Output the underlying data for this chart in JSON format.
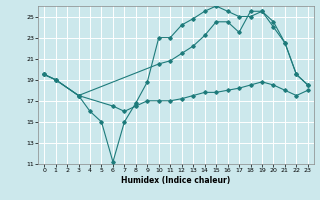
{
  "xlabel": "Humidex (Indice chaleur)",
  "bg_color": "#cce8ec",
  "grid_color": "#ffffff",
  "line_color": "#1e7b7b",
  "xlim": [
    -0.5,
    23.5
  ],
  "ylim": [
    11,
    26
  ],
  "xticks": [
    0,
    1,
    2,
    3,
    4,
    5,
    6,
    7,
    8,
    9,
    10,
    11,
    12,
    13,
    14,
    15,
    16,
    17,
    18,
    19,
    20,
    21,
    22,
    23
  ],
  "yticks": [
    11,
    13,
    15,
    17,
    19,
    21,
    23,
    25
  ],
  "series1_x": [
    0,
    1,
    3,
    4,
    5,
    6,
    7,
    8,
    9,
    10,
    11,
    12,
    13,
    14,
    15,
    16,
    17,
    18,
    19,
    20,
    21,
    22,
    23
  ],
  "series1_y": [
    19.5,
    19.0,
    17.5,
    16.0,
    15.0,
    11.2,
    15.0,
    16.8,
    18.8,
    23.0,
    23.0,
    24.2,
    24.8,
    25.5,
    26.0,
    25.5,
    25.0,
    25.0,
    25.5,
    24.5,
    22.5,
    19.5,
    18.5
  ],
  "series2_x": [
    0,
    1,
    3,
    10,
    11,
    12,
    13,
    14,
    15,
    16,
    17,
    18,
    19,
    20,
    21,
    22,
    23
  ],
  "series2_y": [
    19.5,
    19.0,
    17.5,
    20.5,
    20.8,
    21.5,
    22.2,
    23.2,
    24.5,
    24.5,
    23.5,
    25.5,
    25.5,
    24.0,
    22.5,
    19.5,
    18.5
  ],
  "series3_x": [
    0,
    1,
    3,
    6,
    7,
    8,
    9,
    10,
    11,
    12,
    13,
    14,
    15,
    16,
    17,
    18,
    19,
    20,
    21,
    22,
    23
  ],
  "series3_y": [
    19.5,
    19.0,
    17.5,
    16.5,
    16.0,
    16.5,
    17.0,
    17.0,
    17.0,
    17.2,
    17.5,
    17.8,
    17.8,
    18.0,
    18.2,
    18.5,
    18.8,
    18.5,
    18.0,
    17.5,
    18.0
  ]
}
